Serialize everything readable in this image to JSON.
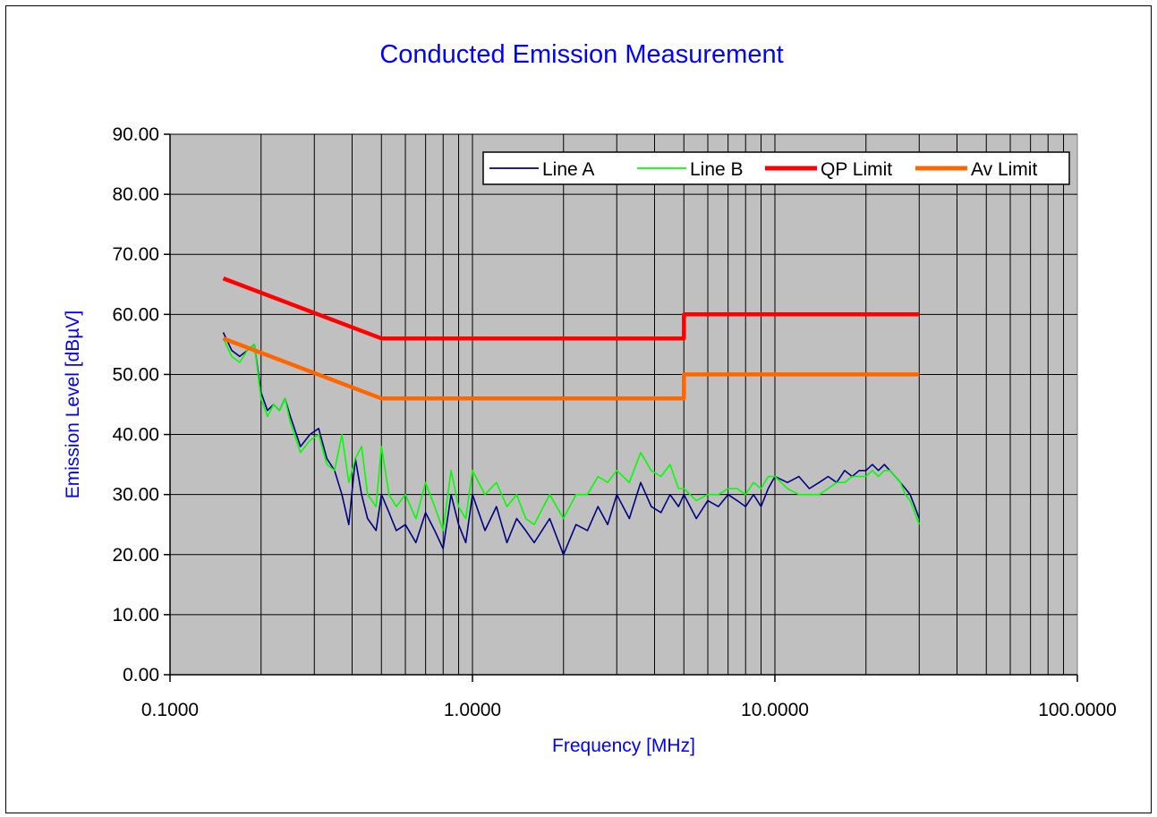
{
  "chart_data": {
    "type": "line",
    "title": "Conducted Emission Measurement",
    "xlabel": "Frequency [MHz]",
    "ylabel": "Emission Level [dBµV]",
    "xscale": "log",
    "xlim": [
      0.1,
      100
    ],
    "ylim": [
      0,
      90
    ],
    "xticks": [
      "0.1000",
      "1.0000",
      "10.0000",
      "100.0000"
    ],
    "yticks": [
      "0.00",
      "10.00",
      "20.00",
      "30.00",
      "40.00",
      "50.00",
      "60.00",
      "70.00",
      "80.00",
      "90.00"
    ],
    "grid": true,
    "legend_position": "top-right",
    "series": [
      {
        "name": "Line A",
        "color": "#000080",
        "x": [
          0.15,
          0.16,
          0.17,
          0.18,
          0.19,
          0.2,
          0.21,
          0.22,
          0.23,
          0.24,
          0.25,
          0.27,
          0.29,
          0.31,
          0.33,
          0.35,
          0.37,
          0.39,
          0.41,
          0.43,
          0.45,
          0.48,
          0.5,
          0.53,
          0.56,
          0.6,
          0.65,
          0.7,
          0.75,
          0.8,
          0.85,
          0.9,
          0.95,
          1.0,
          1.1,
          1.2,
          1.3,
          1.4,
          1.5,
          1.6,
          1.8,
          2.0,
          2.2,
          2.4,
          2.6,
          2.8,
          3.0,
          3.3,
          3.6,
          3.9,
          4.2,
          4.5,
          4.8,
          5.0,
          5.5,
          6.0,
          6.5,
          7.0,
          7.5,
          8.0,
          8.5,
          9.0,
          9.5,
          10.0,
          11.0,
          12.0,
          13.0,
          14.0,
          15.0,
          16.0,
          17.0,
          18.0,
          19.0,
          20.0,
          21.0,
          22.0,
          23.0,
          24.0,
          25.0,
          26.0,
          27.0,
          28.0,
          29.0,
          30.0
        ],
        "values": [
          57,
          54,
          53,
          54,
          55,
          47,
          44,
          45,
          44,
          46,
          43,
          38,
          40,
          41,
          36,
          34,
          30,
          25,
          36,
          30,
          26,
          24,
          30,
          27,
          24,
          25,
          22,
          27,
          24,
          21,
          30,
          25,
          22,
          30,
          24,
          28,
          22,
          26,
          24,
          22,
          26,
          20,
          25,
          24,
          28,
          25,
          30,
          26,
          32,
          28,
          27,
          30,
          28,
          30,
          26,
          29,
          28,
          30,
          29,
          28,
          30,
          28,
          31,
          33,
          32,
          33,
          31,
          32,
          33,
          32,
          34,
          33,
          34,
          34,
          35,
          34,
          35,
          34,
          33,
          32,
          31,
          30,
          28,
          26
        ]
      },
      {
        "name": "Line B",
        "color": "#00ff00",
        "x": [
          0.15,
          0.16,
          0.17,
          0.18,
          0.19,
          0.2,
          0.21,
          0.22,
          0.23,
          0.24,
          0.25,
          0.27,
          0.29,
          0.31,
          0.33,
          0.35,
          0.37,
          0.39,
          0.41,
          0.43,
          0.45,
          0.48,
          0.5,
          0.53,
          0.56,
          0.6,
          0.65,
          0.7,
          0.75,
          0.8,
          0.85,
          0.9,
          0.95,
          1.0,
          1.1,
          1.2,
          1.3,
          1.4,
          1.5,
          1.6,
          1.8,
          2.0,
          2.2,
          2.4,
          2.6,
          2.8,
          3.0,
          3.3,
          3.6,
          3.9,
          4.2,
          4.5,
          4.8,
          5.0,
          5.5,
          6.0,
          6.5,
          7.0,
          7.5,
          8.0,
          8.5,
          9.0,
          9.5,
          10.0,
          11.0,
          12.0,
          13.0,
          14.0,
          15.0,
          16.0,
          17.0,
          18.0,
          19.0,
          20.0,
          21.0,
          22.0,
          23.0,
          24.0,
          25.0,
          26.0,
          27.0,
          28.0,
          29.0,
          30.0
        ],
        "values": [
          56,
          53,
          52,
          54,
          55,
          46,
          43,
          45,
          44,
          46,
          42,
          37,
          39,
          40,
          35,
          34,
          40,
          32,
          36,
          38,
          30,
          28,
          38,
          30,
          28,
          30,
          26,
          32,
          28,
          24,
          34,
          28,
          26,
          34,
          30,
          32,
          28,
          30,
          26,
          25,
          30,
          26,
          30,
          30,
          33,
          32,
          34,
          32,
          37,
          34,
          33,
          35,
          31,
          31,
          29,
          30,
          30,
          31,
          31,
          30,
          32,
          31,
          33,
          33,
          31,
          30,
          30,
          30,
          31,
          32,
          32,
          33,
          33,
          33,
          34,
          33,
          34,
          34,
          33,
          32,
          30,
          29,
          27,
          25
        ]
      },
      {
        "name": "QP Limit",
        "color": "#ff0000",
        "x": [
          0.15,
          0.5,
          5.0,
          5.0,
          30.0
        ],
        "values": [
          66,
          56,
          56,
          60,
          60
        ]
      },
      {
        "name": "Av Limit",
        "color": "#ff6600",
        "x": [
          0.15,
          0.5,
          5.0,
          5.0,
          30.0
        ],
        "values": [
          56,
          46,
          46,
          50,
          50
        ]
      }
    ]
  }
}
